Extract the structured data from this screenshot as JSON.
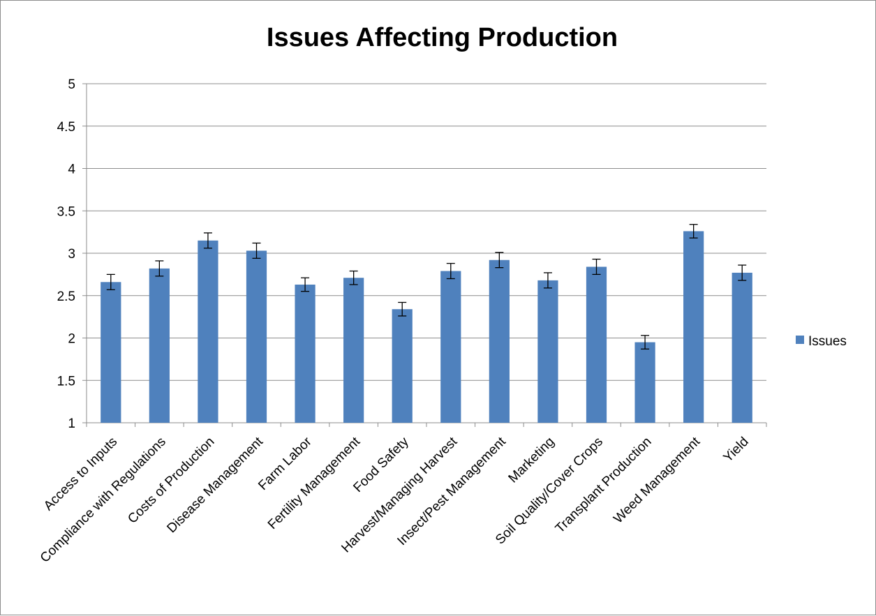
{
  "chart_data": {
    "type": "bar",
    "title": "Issues Affecting Production",
    "categories": [
      "Access to Inputs",
      "Compliance with Regulations",
      "Costs of Production",
      "Disease Management",
      "Farm Labor",
      "Fertility Management",
      "Food Safety",
      "Harvest/Managing Harvest",
      "Insect/Pest Management",
      "Marketing",
      "Soil Quality/Cover Crops",
      "Transplant Production",
      "Weed Management",
      "Yield"
    ],
    "series": [
      {
        "name": "Issues",
        "color": "#4f81bd",
        "values": [
          2.66,
          2.82,
          3.15,
          3.03,
          2.63,
          2.71,
          2.34,
          2.79,
          2.92,
          2.68,
          2.84,
          1.95,
          3.26,
          2.77
        ],
        "error": [
          0.09,
          0.09,
          0.09,
          0.09,
          0.08,
          0.08,
          0.08,
          0.09,
          0.09,
          0.09,
          0.09,
          0.08,
          0.08,
          0.09
        ]
      }
    ],
    "yticks": [
      "1",
      "1.5",
      "2",
      "2.5",
      "3",
      "3.5",
      "4",
      "4.5",
      "5"
    ],
    "ylim": [
      1,
      5
    ],
    "grid": true,
    "legend_position": "right"
  }
}
